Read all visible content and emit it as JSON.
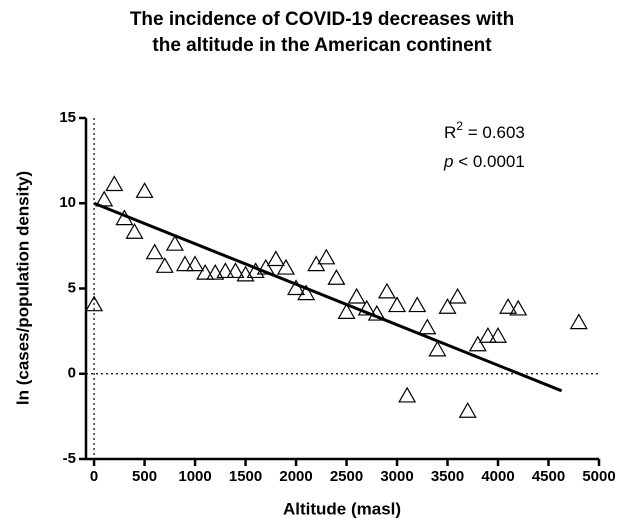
{
  "chart_data": {
    "type": "scatter",
    "title": [
      "The incidence of COVID-19 decreases with",
      "the altitude in the American continent"
    ],
    "xlabel": "Altitude (masl)",
    "ylabel": "ln (cases/population density)",
    "annotations": {
      "r2": [
        "R",
        "2",
        " = 0.603"
      ],
      "p": [
        "p",
        " < 0.0001"
      ]
    },
    "x": [
      0,
      100,
      200,
      300,
      400,
      500,
      600,
      700,
      800,
      900,
      1000,
      1100,
      1200,
      1300,
      1400,
      1500,
      1600,
      1700,
      1800,
      1900,
      2000,
      2100,
      2200,
      2300,
      2400,
      2500,
      2600,
      2700,
      2800,
      2900,
      3000,
      3100,
      3200,
      3300,
      3400,
      3500,
      3600,
      3700,
      3800,
      3900,
      4000,
      4100,
      4200,
      4800
    ],
    "values": [
      4.05,
      10.2,
      11.1,
      9.1,
      8.3,
      10.7,
      7.1,
      6.3,
      7.6,
      6.4,
      6.4,
      5.9,
      5.9,
      6.0,
      6.0,
      5.8,
      6.0,
      6.2,
      6.7,
      6.2,
      5.0,
      4.7,
      6.4,
      6.8,
      5.6,
      3.6,
      4.5,
      3.8,
      3.5,
      4.8,
      4.0,
      -1.3,
      4.0,
      2.7,
      1.4,
      3.9,
      4.5,
      -2.2,
      1.7,
      2.2,
      2.2,
      3.9,
      3.8,
      3.0
    ],
    "color": "#000000",
    "fit": {
      "x": [
        0,
        4630
      ],
      "y": [
        10,
        -1
      ]
    },
    "hlines": [
      0
    ],
    "vlines": [
      0
    ],
    "xlim": [
      -80,
      5000
    ],
    "ylim": [
      -5,
      15
    ],
    "xticks": [
      0,
      500,
      1000,
      1500,
      2000,
      2500,
      3000,
      3500,
      4000,
      4500,
      5000
    ],
    "yticks": [
      -5,
      0,
      5,
      10,
      15
    ]
  }
}
